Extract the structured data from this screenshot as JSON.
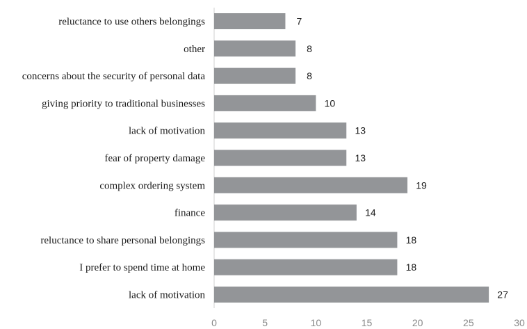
{
  "chart_data": {
    "type": "bar",
    "orientation": "horizontal",
    "categories": [
      "reluctance to use others belongings",
      "other",
      "concerns about the security of personal data",
      "giving priority to traditional businesses",
      "lack of motivation",
      "fear of property damage",
      "complex ordering system",
      "finance",
      "reluctance to share personal belongings",
      "I prefer to spend time at home",
      "lack of motivation"
    ],
    "values": [
      7,
      8,
      8,
      10,
      13,
      13,
      19,
      14,
      18,
      18,
      27
    ],
    "xlim": [
      0,
      30
    ],
    "xticks": [
      "0",
      "5",
      "10",
      "15",
      "20",
      "25",
      "30"
    ],
    "grid": false,
    "bar_color": "#939598",
    "title": "",
    "xlabel": "",
    "ylabel": ""
  }
}
